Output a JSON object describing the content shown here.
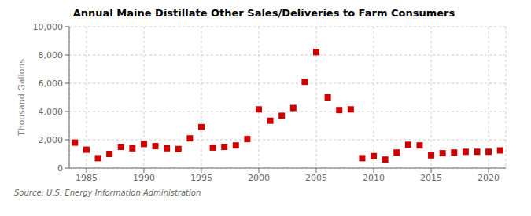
{
  "chart_data": {
    "type": "scatter",
    "title": "Annual Maine Distillate Other Sales/Deliveries to Farm Consumers",
    "y_label": "Thousand Gallons",
    "annotations": [
      "Source: U.S. Energy Information Administration"
    ],
    "color": "#cc0000",
    "marker": "square",
    "grid": true,
    "xlim": [
      1983.5,
      2021.5
    ],
    "ylim": [
      0,
      10000
    ],
    "xticks": [
      1985,
      1990,
      1995,
      2000,
      2005,
      2010,
      2015,
      2020
    ],
    "yticks": [
      0,
      {
        "value": 2000,
        "label": "2,000"
      },
      {
        "value": 4000,
        "label": "4,000"
      },
      {
        "value": 6000,
        "label": "6,000"
      },
      {
        "value": 8000,
        "label": "8,000"
      },
      {
        "value": 10000,
        "label": "10,000"
      }
    ],
    "x": [
      1984,
      1985,
      1986,
      1987,
      1988,
      1989,
      1990,
      1991,
      1992,
      1993,
      1994,
      1995,
      1996,
      1997,
      1998,
      1999,
      2000,
      2001,
      2002,
      2003,
      2004,
      2005,
      2006,
      2007,
      2008,
      2009,
      2010,
      2011,
      2012,
      2013,
      2014,
      2015,
      2016,
      2017,
      2018,
      2019,
      2020,
      2021
    ],
    "values": [
      1800,
      1300,
      700,
      1000,
      1500,
      1400,
      1700,
      1550,
      1400,
      1350,
      2100,
      2900,
      1450,
      1500,
      1600,
      2050,
      4150,
      3350,
      3700,
      4250,
      6100,
      8200,
      5000,
      4100,
      4150,
      700,
      850,
      600,
      1100,
      1650,
      1600,
      900,
      1050,
      1100,
      1150,
      1150,
      1150,
      1250
    ]
  }
}
